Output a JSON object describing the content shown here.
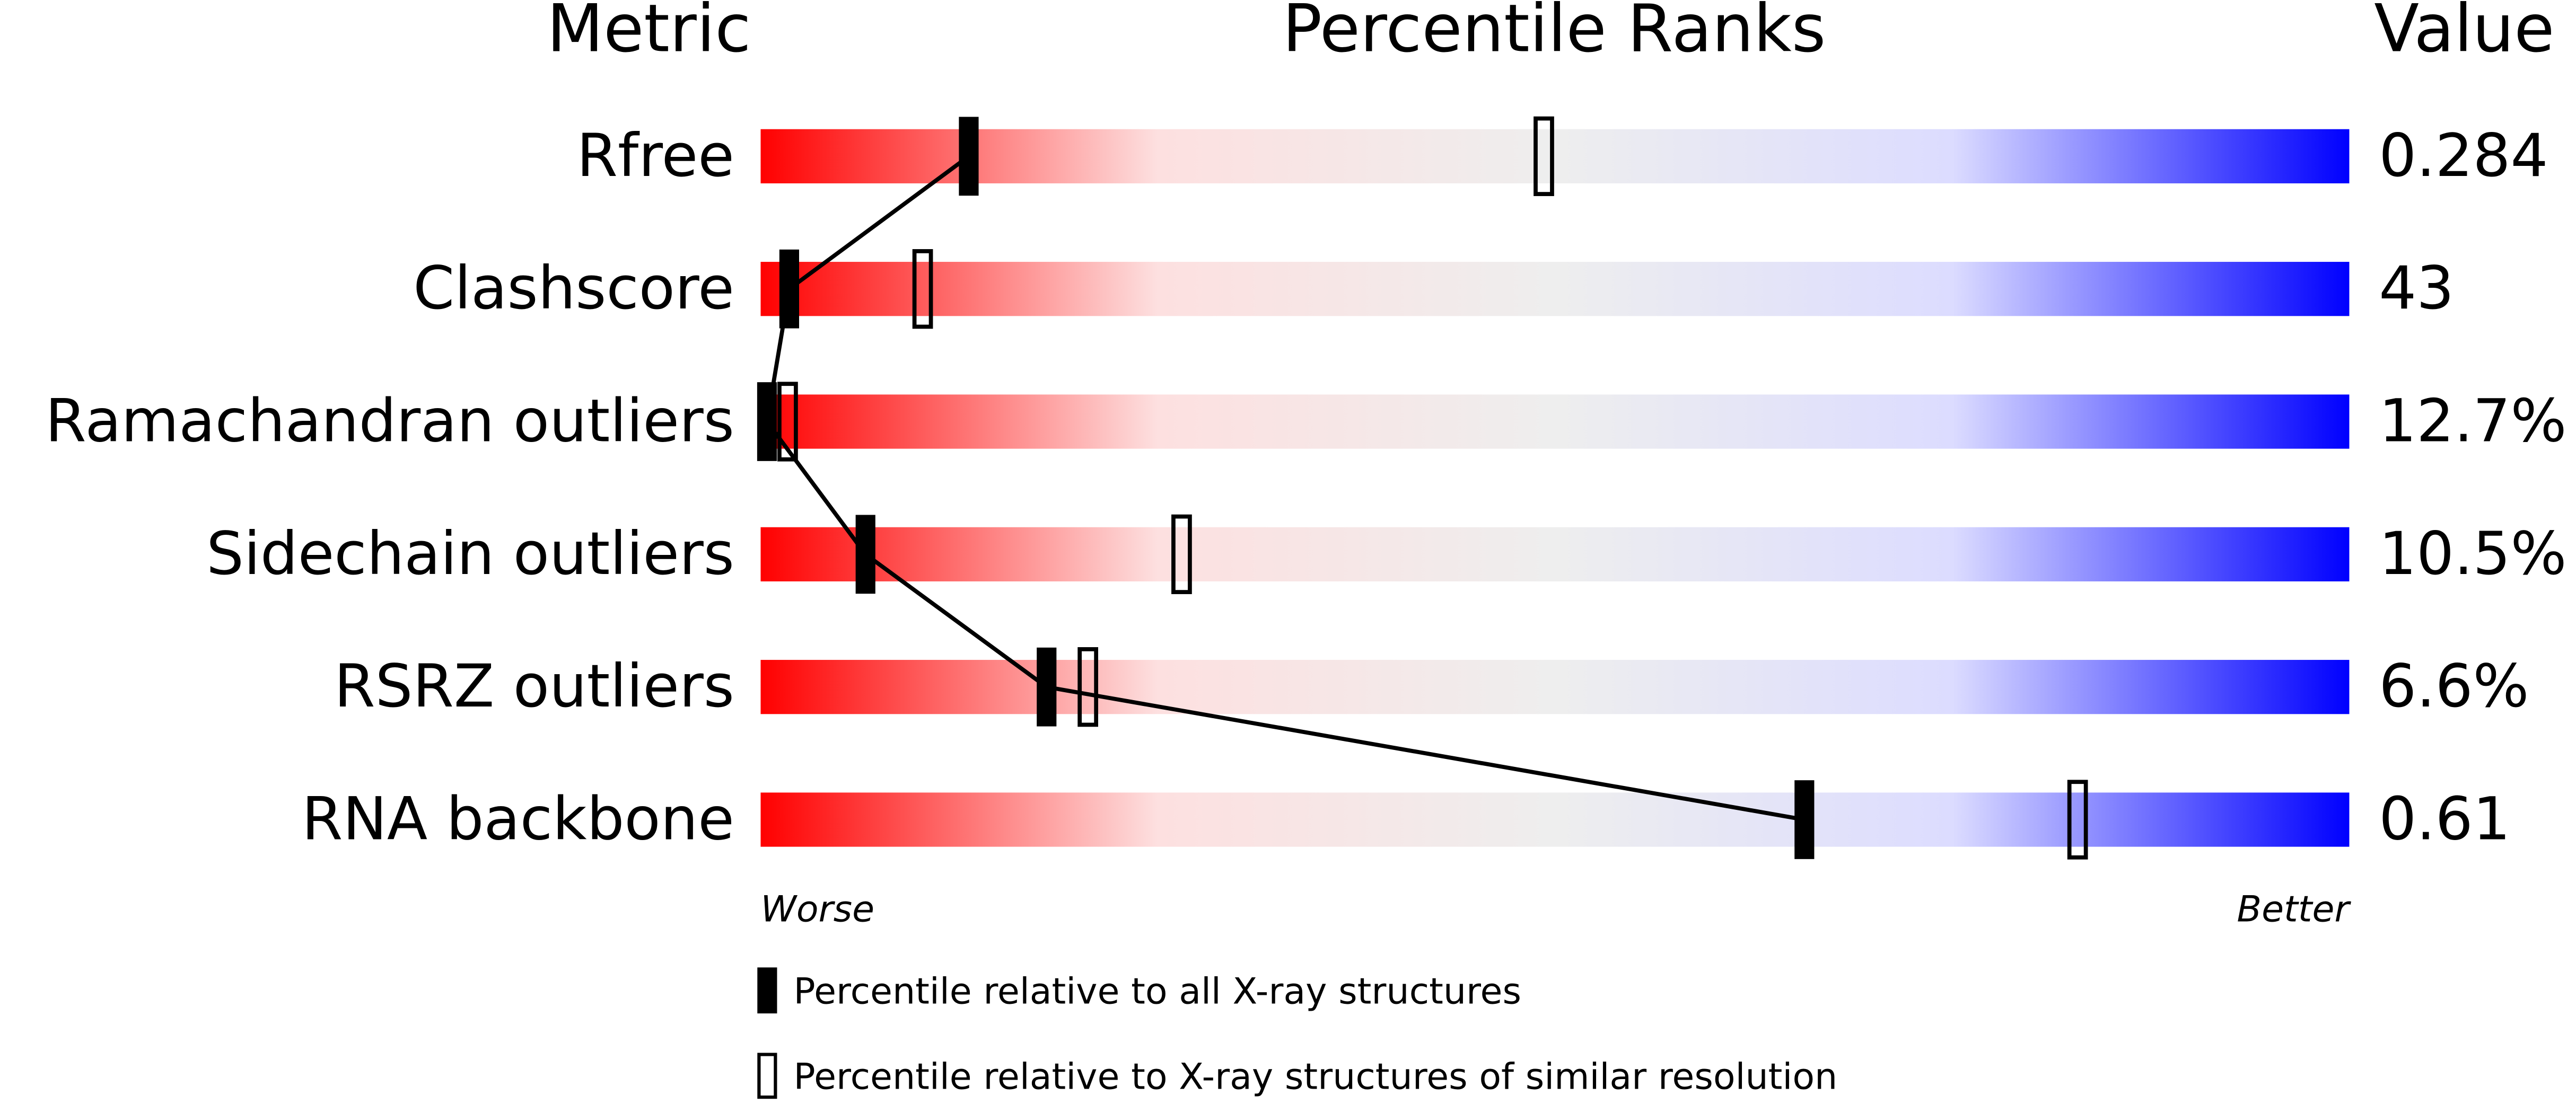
{
  "chart_data": {
    "type": "percentile",
    "headers": [
      "Metric",
      "Percentile Ranks",
      "Value"
    ],
    "categories": [
      "Rfree",
      "Clashscore",
      "Ramachandran outliers",
      "Sidechain outliers",
      "RSRZ outliers",
      "RNA backbone"
    ],
    "metric_values": [
      "0.284",
      "43",
      "12.7%",
      "10.5%",
      "6.6%",
      "0.61"
    ],
    "series": [
      {
        "name": "Percentile relative to all X-ray structures",
        "color": "#000000",
        "filled": true,
        "values": [
          13.1,
          1.8,
          0.4,
          6.6,
          18.0,
          65.7
        ]
      },
      {
        "name": "Percentile relative to X-ray structures of similar resolution",
        "color": "#000000",
        "filled": false,
        "values": [
          49.3,
          10.2,
          1.7,
          26.5,
          20.6,
          82.9
        ]
      }
    ],
    "xlim": [
      0,
      100
    ],
    "axis_labels": [
      "Worse",
      "Better"
    ],
    "gradient": [
      "#ff0000",
      "#fde0e0",
      "#eeeeee",
      "#dcdcff",
      "#0000ff"
    ]
  }
}
